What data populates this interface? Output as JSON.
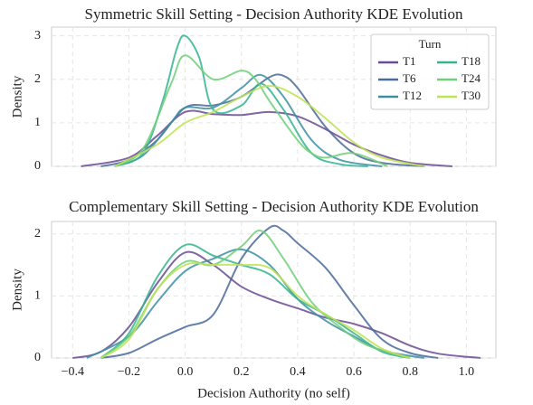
{
  "chart_data": [
    {
      "type": "line",
      "title": "Symmetric Skill Setting - Decision Authority KDE Evolution",
      "ylabel": "Density",
      "xlim": [
        -0.475,
        1.105
      ],
      "ylim": [
        0,
        3.2
      ],
      "yticks": [
        0,
        1,
        2,
        3
      ],
      "grid": true,
      "legend": {
        "title": "Turn",
        "position": "upper right"
      },
      "series": [
        {
          "name": "T1",
          "color": "#6a4c93",
          "x": [
            -0.37,
            -0.2,
            -0.1,
            0,
            0.1,
            0.2,
            0.3,
            0.4,
            0.5,
            0.6,
            0.7,
            0.8,
            0.95
          ],
          "values": [
            0,
            0.2,
            0.7,
            1.25,
            1.2,
            1.18,
            1.25,
            1.15,
            0.85,
            0.5,
            0.25,
            0.08,
            0
          ]
        },
        {
          "name": "T6",
          "color": "#4a6a9a",
          "x": [
            -0.3,
            -0.2,
            -0.1,
            0,
            0.1,
            0.2,
            0.3,
            0.35,
            0.4,
            0.5,
            0.6,
            0.7,
            0.85
          ],
          "values": [
            0,
            0.15,
            0.6,
            1.35,
            1.4,
            1.6,
            2.05,
            2.08,
            1.8,
            0.9,
            0.3,
            0.08,
            0
          ]
        },
        {
          "name": "T12",
          "color": "#3d8ea5",
          "x": [
            -0.25,
            -0.15,
            -0.05,
            0,
            0.1,
            0.2,
            0.27,
            0.35,
            0.45,
            0.55,
            0.7
          ],
          "values": [
            0,
            0.25,
            1.0,
            1.35,
            1.35,
            1.8,
            2.1,
            1.6,
            0.6,
            0.15,
            0
          ]
        },
        {
          "name": "T18",
          "color": "#35b48f",
          "x": [
            -0.25,
            -0.15,
            -0.08,
            -0.03,
            0,
            0.05,
            0.1,
            0.2,
            0.27,
            0.35,
            0.45,
            0.55,
            0.65
          ],
          "values": [
            0,
            0.3,
            1.5,
            2.7,
            3.0,
            2.5,
            1.3,
            1.4,
            1.9,
            1.3,
            0.3,
            0.05,
            0
          ]
        },
        {
          "name": "T24",
          "color": "#6fcf7a",
          "x": [
            -0.25,
            -0.15,
            -0.05,
            0,
            0.1,
            0.2,
            0.25,
            0.3,
            0.4,
            0.45,
            0.5,
            0.6,
            0.72
          ],
          "values": [
            0,
            0.4,
            1.9,
            2.55,
            2.0,
            2.2,
            2.0,
            1.5,
            0.6,
            0.3,
            0.2,
            0.3,
            0
          ]
        },
        {
          "name": "T30",
          "color": "#bde356",
          "x": [
            -0.25,
            -0.1,
            0,
            0.1,
            0.2,
            0.3,
            0.4,
            0.5,
            0.6,
            0.7,
            0.85
          ],
          "values": [
            0,
            0.5,
            1.0,
            1.25,
            1.6,
            1.85,
            1.6,
            1.1,
            0.55,
            0.2,
            0
          ]
        }
      ]
    },
    {
      "type": "line",
      "title": "Complementary Skill Setting - Decision Authority KDE Evolution",
      "ylabel": "Density",
      "xlabel": "Decision Authority (no self)",
      "xlim": [
        -0.475,
        1.105
      ],
      "ylim": [
        0,
        2.2
      ],
      "yticks": [
        0,
        1,
        2
      ],
      "grid": true,
      "xticks": [
        {
          "value": -0.4,
          "label": "−0.4"
        },
        {
          "value": -0.2,
          "label": "−0.2"
        },
        {
          "value": 0,
          "label": "0.0"
        },
        0.2,
        0.4,
        0.6,
        0.8,
        {
          "value": 1,
          "label": "1.0"
        }
      ],
      "series": [
        {
          "name": "T1",
          "color": "#6a4c93",
          "x": [
            -0.4,
            -0.3,
            -0.2,
            -0.1,
            0,
            0.1,
            0.2,
            0.3,
            0.4,
            0.5,
            0.6,
            0.7,
            0.8,
            0.9,
            1.05
          ],
          "values": [
            0,
            0.1,
            0.5,
            1.2,
            1.7,
            1.5,
            1.15,
            0.95,
            0.8,
            0.65,
            0.55,
            0.4,
            0.2,
            0.07,
            0
          ]
        },
        {
          "name": "T6",
          "color": "#4a6a9a",
          "x": [
            -0.3,
            -0.2,
            -0.1,
            0,
            0.1,
            0.2,
            0.3,
            0.35,
            0.4,
            0.5,
            0.6,
            0.7,
            0.8,
            0.9
          ],
          "values": [
            0,
            0.08,
            0.3,
            0.5,
            0.7,
            1.6,
            2.1,
            2.05,
            1.85,
            1.45,
            0.85,
            0.3,
            0.08,
            0
          ]
        },
        {
          "name": "T12",
          "color": "#3d8ea5",
          "x": [
            -0.35,
            -0.2,
            -0.1,
            0,
            0.1,
            0.2,
            0.3,
            0.4,
            0.5,
            0.6,
            0.7,
            0.85
          ],
          "values": [
            0,
            0.35,
            0.9,
            1.4,
            1.6,
            1.75,
            1.5,
            0.95,
            0.6,
            0.35,
            0.12,
            0
          ]
        },
        {
          "name": "T18",
          "color": "#35b48f",
          "x": [
            -0.3,
            -0.2,
            -0.1,
            0,
            0.1,
            0.2,
            0.3,
            0.4,
            0.5,
            0.6,
            0.7,
            0.8
          ],
          "values": [
            0,
            0.4,
            1.3,
            1.82,
            1.65,
            1.5,
            1.35,
            0.95,
            0.7,
            0.4,
            0.1,
            0
          ]
        },
        {
          "name": "T24",
          "color": "#6fcf7a",
          "x": [
            -0.3,
            -0.2,
            -0.1,
            0,
            0.1,
            0.2,
            0.27,
            0.35,
            0.45,
            0.55,
            0.65,
            0.8
          ],
          "values": [
            0,
            0.35,
            1.1,
            1.55,
            1.5,
            1.8,
            2.05,
            1.6,
            0.9,
            0.5,
            0.2,
            0
          ]
        },
        {
          "name": "T30",
          "color": "#bde356",
          "x": [
            -0.3,
            -0.2,
            -0.1,
            0,
            0.1,
            0.2,
            0.3,
            0.4,
            0.5,
            0.6,
            0.7,
            0.8
          ],
          "values": [
            0,
            0.3,
            1.1,
            1.5,
            1.5,
            1.5,
            1.45,
            1.0,
            0.7,
            0.45,
            0.15,
            0
          ]
        }
      ]
    }
  ]
}
